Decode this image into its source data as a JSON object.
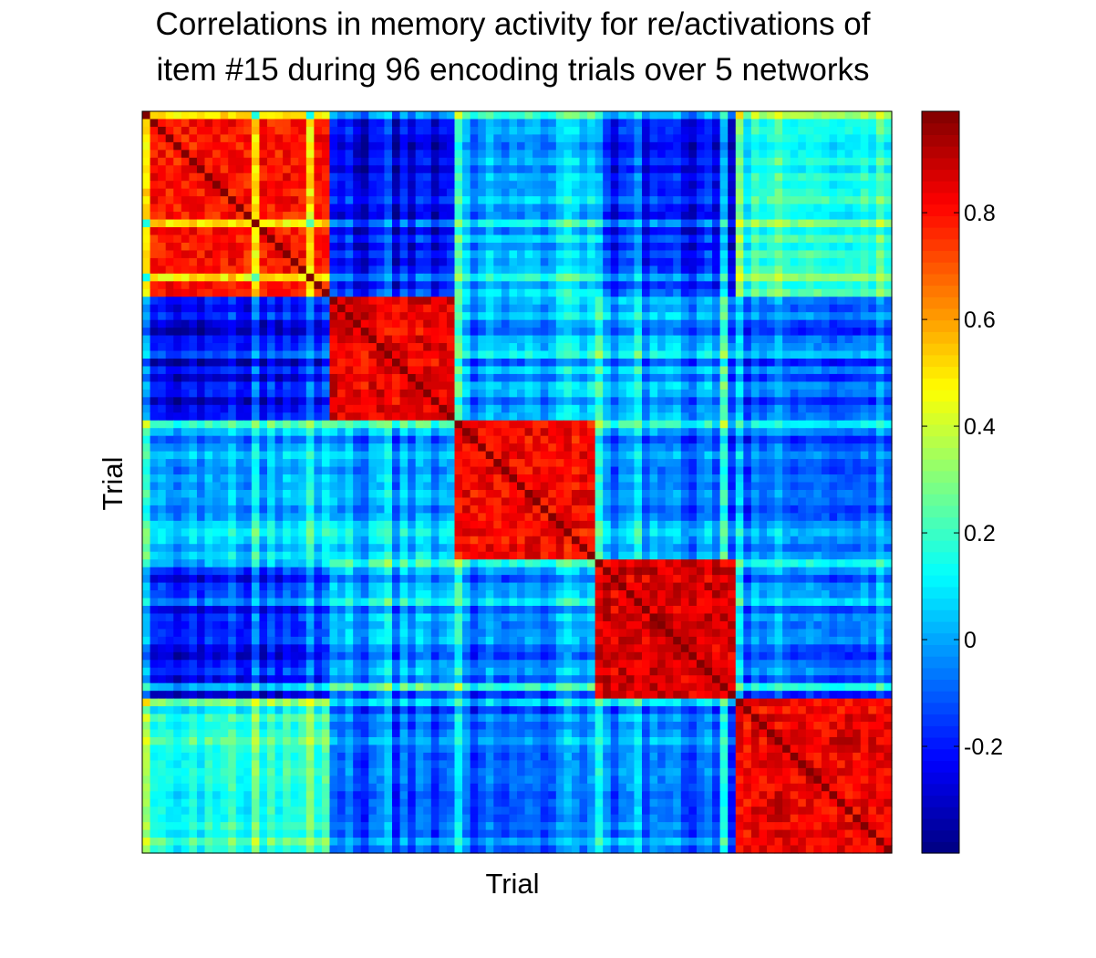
{
  "chart_data": {
    "type": "heatmap",
    "title": "Correlations in memory activity for re/activations of item #15 during 96 encoding trials over 5 networks",
    "title_lines": [
      "Correlations in memory activity for re/activations of",
      "item #15 during 96 encoding trials over 5 networks"
    ],
    "xlabel": "Trial",
    "ylabel": "Trial",
    "colormap": "jet",
    "clim": [
      -0.4,
      0.99
    ],
    "n_trials": 96,
    "networks": [
      {
        "trials": 24
      },
      {
        "trials": 16
      },
      {
        "trials": 18
      },
      {
        "trials": 18
      },
      {
        "trials": 20
      }
    ],
    "diagonal_value": 0.99,
    "within_block_mean": [
      0.8,
      0.84,
      0.82,
      0.86,
      0.84
    ],
    "between_block_mean": [
      [
        null,
        -0.25,
        0.0,
        -0.22,
        0.17
      ],
      [
        -0.25,
        null,
        -0.02,
        -0.05,
        -0.1
      ],
      [
        0.0,
        -0.02,
        null,
        -0.08,
        -0.08
      ],
      [
        -0.22,
        -0.05,
        -0.08,
        null,
        -0.08
      ],
      [
        0.17,
        -0.1,
        -0.08,
        -0.08,
        null
      ]
    ],
    "colorbar": {
      "ticks": [
        -0.2,
        0,
        0.2,
        0.4,
        0.6,
        0.8
      ],
      "tick_labels": [
        "-0.2",
        "0",
        "0.2",
        "0.4",
        "0.6",
        "0.8"
      ]
    }
  }
}
